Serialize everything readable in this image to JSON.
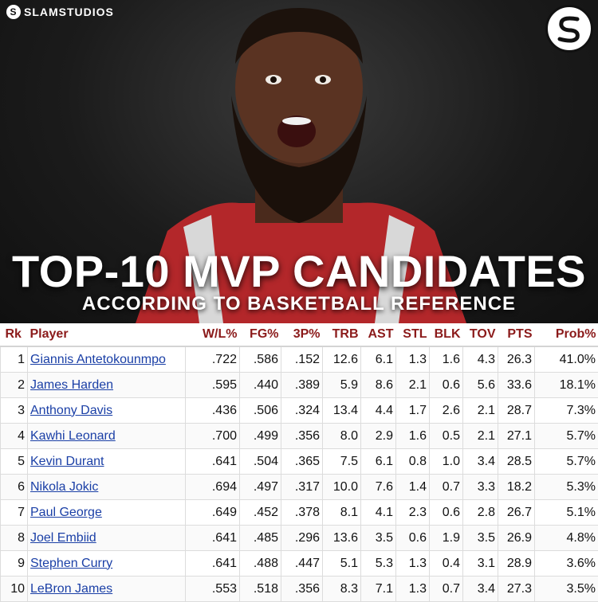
{
  "brand": {
    "name": "SLAMSTUDIOS",
    "logo_letter": "S"
  },
  "title": {
    "main": "TOP-10 MVP CANDIDATES",
    "sub": "ACCORDING TO BASKETBALL REFERENCE"
  },
  "table": {
    "headers": [
      "Rk",
      "Player",
      "W/L%",
      "FG%",
      "3P%",
      "TRB",
      "AST",
      "STL",
      "BLK",
      "TOV",
      "PTS",
      "Prob%"
    ],
    "rows": [
      [
        "1",
        "Giannis Antetokounmpo",
        ".722",
        ".586",
        ".152",
        "12.6",
        "6.1",
        "1.3",
        "1.6",
        "4.3",
        "26.3",
        "41.0%"
      ],
      [
        "2",
        "James Harden",
        ".595",
        ".440",
        ".389",
        "5.9",
        "8.6",
        "2.1",
        "0.6",
        "5.6",
        "33.6",
        "18.1%"
      ],
      [
        "3",
        "Anthony Davis",
        ".436",
        ".506",
        ".324",
        "13.4",
        "4.4",
        "1.7",
        "2.6",
        "2.1",
        "28.7",
        "7.3%"
      ],
      [
        "4",
        "Kawhi Leonard",
        ".700",
        ".499",
        ".356",
        "8.0",
        "2.9",
        "1.6",
        "0.5",
        "2.1",
        "27.1",
        "5.7%"
      ],
      [
        "5",
        "Kevin Durant",
        ".641",
        ".504",
        ".365",
        "7.5",
        "6.1",
        "0.8",
        "1.0",
        "3.4",
        "28.5",
        "5.7%"
      ],
      [
        "6",
        "Nikola Jokic",
        ".694",
        ".497",
        ".317",
        "10.0",
        "7.6",
        "1.4",
        "0.7",
        "3.3",
        "18.2",
        "5.3%"
      ],
      [
        "7",
        "Paul George",
        ".649",
        ".452",
        ".378",
        "8.1",
        "4.1",
        "2.3",
        "0.6",
        "2.8",
        "26.7",
        "5.1%"
      ],
      [
        "8",
        "Joel Embiid",
        ".641",
        ".485",
        ".296",
        "13.6",
        "3.5",
        "0.6",
        "1.9",
        "3.5",
        "26.9",
        "4.8%"
      ],
      [
        "9",
        "Stephen Curry",
        ".641",
        ".488",
        ".447",
        "5.1",
        "5.3",
        "1.3",
        "0.4",
        "3.1",
        "28.9",
        "3.6%"
      ],
      [
        "10",
        "LeBron James",
        ".553",
        ".518",
        ".356",
        "8.3",
        "7.1",
        "1.3",
        "0.7",
        "3.4",
        "27.3",
        "3.5%"
      ]
    ]
  }
}
